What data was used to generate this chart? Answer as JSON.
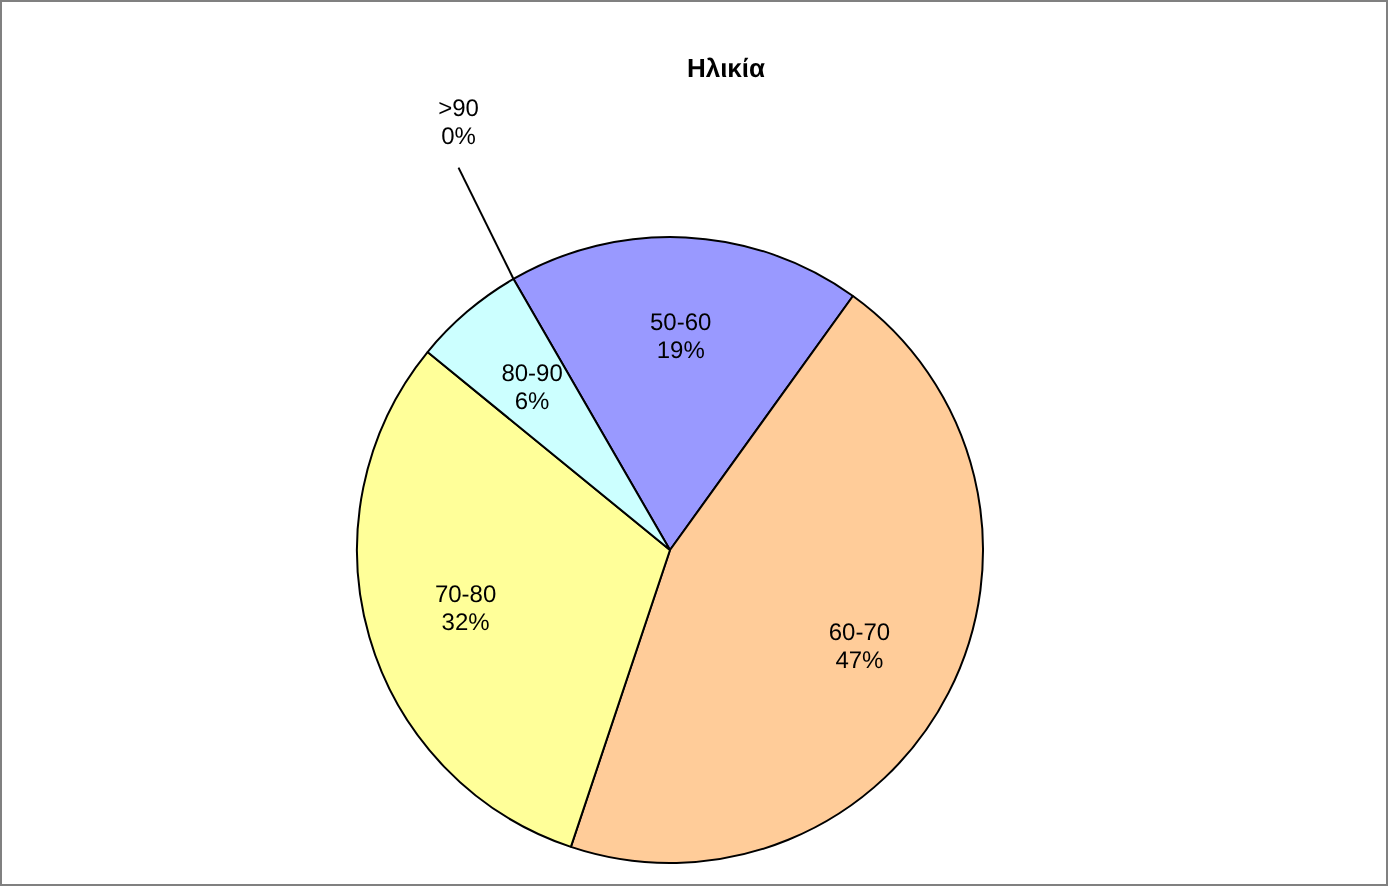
{
  "chart_data": {
    "type": "pie",
    "title": "Ηλικία",
    "categories": [
      "50-60",
      "60-70",
      "70-80",
      "80-90",
      ">90"
    ],
    "values": [
      19,
      47,
      32,
      6,
      0
    ],
    "value_labels": [
      "19%",
      "47%",
      "32%",
      "6%",
      "0%"
    ],
    "colors": [
      "#9999ff",
      "#ffcc99",
      "#ffff99",
      "#ccffff",
      "#660066"
    ],
    "legend": false
  }
}
